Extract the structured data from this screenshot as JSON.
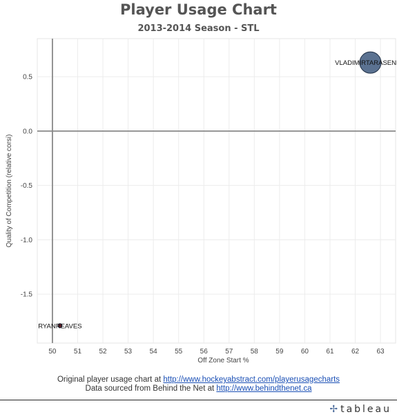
{
  "header": {
    "title": "Player Usage Chart",
    "subtitle": "2013-2014 Season - STL"
  },
  "footer": {
    "line1_prefix": "Original player usage chart at ",
    "line1_link": "http://www.hockeyabstract.com/playerusagecharts",
    "line2_prefix": "Data sourced from Behind the Net at ",
    "line2_link": "http://www.behindthenet.ca",
    "brand": "tableau"
  },
  "colors": {
    "bubble": "#5b7291",
    "bubble_stroke": "#1f2f45",
    "axis_line": "#888888",
    "grid": "#ececec"
  },
  "chart_data": {
    "type": "scatter",
    "xlabel": "Off Zone Start %",
    "ylabel": "Quality of Competition (relative corsi)",
    "xlim": [
      49.4,
      63.6
    ],
    "ylim": [
      -1.95,
      0.85
    ],
    "xticks": [
      "50",
      "51",
      "52",
      "53",
      "54",
      "55",
      "56",
      "57",
      "58",
      "59",
      "60",
      "61",
      "62",
      "63"
    ],
    "yticks": [
      "0.5",
      "0.0",
      "-0.5",
      "-1.0",
      "-1.5"
    ],
    "grid": true,
    "reference_lines": {
      "x": 50,
      "y": 0
    },
    "points": [
      {
        "label": "VLADIMIRTARASENKO",
        "x": 62.6,
        "y": 0.63,
        "size": "large"
      },
      {
        "label": "RYANREAVES",
        "x": 50.3,
        "y": -1.79,
        "size": "small"
      }
    ]
  }
}
